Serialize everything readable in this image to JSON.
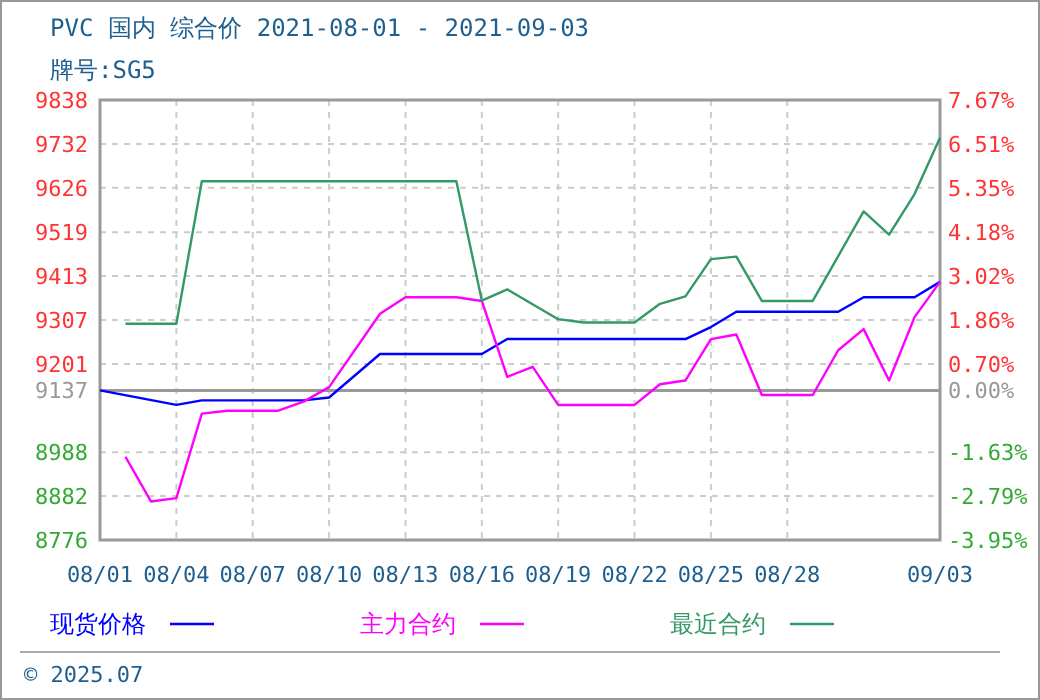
{
  "chart_data": {
    "type": "line",
    "title": "PVC 国内 综合价 2021-08-01 - 2021-09-03",
    "subtitle": "牌号:SG5",
    "xlim": [
      "--08-01",
      "--09-03"
    ],
    "xticks": [
      {
        "value": "--08-01",
        "label": "08/01"
      },
      {
        "value": "--08-04",
        "label": "08/04"
      },
      {
        "value": "--08-07",
        "label": "08/07"
      },
      {
        "value": "--08-10",
        "label": "08/10"
      },
      {
        "value": "--08-13",
        "label": "08/13"
      },
      {
        "value": "--08-16",
        "label": "08/16"
      },
      {
        "value": "--08-19",
        "label": "08/19"
      },
      {
        "value": "--08-22",
        "label": "08/22"
      },
      {
        "value": "--08-25",
        "label": "08/25"
      },
      {
        "value": "--08-28",
        "label": "08/28"
      },
      {
        "value": "--09-03",
        "label": "09/03"
      }
    ],
    "ylim": [
      8776,
      9838
    ],
    "yticks": [
      8776,
      8882,
      8988,
      9137,
      9201,
      9307,
      9413,
      9519,
      9626,
      9732,
      9838
    ],
    "y2lim": [
      -3.95,
      7.67
    ],
    "y2ticks": [
      {
        "value": -3.95,
        "label": "-3.95%"
      },
      {
        "value": -2.79,
        "label": "-2.79%"
      },
      {
        "value": -1.63,
        "label": "-1.63%"
      },
      {
        "value": 0,
        "label": "0.00%"
      },
      {
        "value": 0.7,
        "label": "0.70%"
      },
      {
        "value": 1.86,
        "label": "1.86%"
      },
      {
        "value": 3.02,
        "label": "3.02%"
      },
      {
        "value": 4.18,
        "label": "4.18%"
      },
      {
        "value": 5.35,
        "label": "5.35%"
      },
      {
        "value": 6.51,
        "label": "6.51%"
      },
      {
        "value": 7.67,
        "label": "7.67%"
      }
    ],
    "ref_lines": [
      {
        "axis": "y2",
        "value": 0,
        "color": "#999999",
        "line_style": "solid"
      }
    ],
    "grid": true,
    "legend": "bottom",
    "marker": "none",
    "line_style": "solid",
    "annotations": [
      "© 2025.07"
    ],
    "series": [
      {
        "name": "现货价格",
        "color": "#0000ff",
        "x": [
          "--08-01",
          "--08-04",
          "--08-05",
          "--08-09",
          "--08-10",
          "--08-12",
          "--08-16",
          "--08-17",
          "--08-24",
          "--08-25",
          "--08-26",
          "--08-30",
          "--08-31",
          "--09-02",
          "--09-03"
        ],
        "values": [
          9137,
          9102,
          9113,
          9113,
          9120,
          9225,
          9225,
          9261,
          9261,
          9290,
          9327,
          9327,
          9362,
          9362,
          9399
        ]
      },
      {
        "name": "主力合约",
        "color": "#ff00ff",
        "x": [
          "--08-02",
          "--08-03",
          "--08-04",
          "--08-05",
          "--08-06",
          "--08-08",
          "--08-09",
          "--08-10",
          "--08-12",
          "--08-13",
          "--08-15",
          "--08-16",
          "--08-17",
          "--08-18",
          "--08-19",
          "--08-22",
          "--08-23",
          "--08-24",
          "--08-25",
          "--08-26",
          "--08-27",
          "--08-29",
          "--08-30",
          "--08-31",
          "--09-01",
          "--09-02",
          "--09-03"
        ],
        "values": [
          8977,
          8869,
          8877,
          9081,
          9088,
          9088,
          9110,
          9145,
          9322,
          9362,
          9362,
          9353,
          9170,
          9194,
          9102,
          9102,
          9152,
          9161,
          9261,
          9272,
          9126,
          9126,
          9234,
          9285,
          9161,
          9314,
          9399
        ]
      },
      {
        "name": "最近合约",
        "color": "#339966",
        "x": [
          "--08-02",
          "--08-04",
          "--08-05",
          "--08-15",
          "--08-16",
          "--08-17",
          "--08-19",
          "--08-20",
          "--08-22",
          "--08-23",
          "--08-24",
          "--08-25",
          "--08-26",
          "--08-27",
          "--08-29",
          "--08-31",
          "--09-01",
          "--09-02",
          "--09-03"
        ],
        "values": [
          9298,
          9298,
          9642,
          9642,
          9354,
          9381,
          9309,
          9301,
          9301,
          9346,
          9364,
          9454,
          9460,
          9353,
          9353,
          9569,
          9513,
          9611,
          9747
        ]
      }
    ]
  }
}
